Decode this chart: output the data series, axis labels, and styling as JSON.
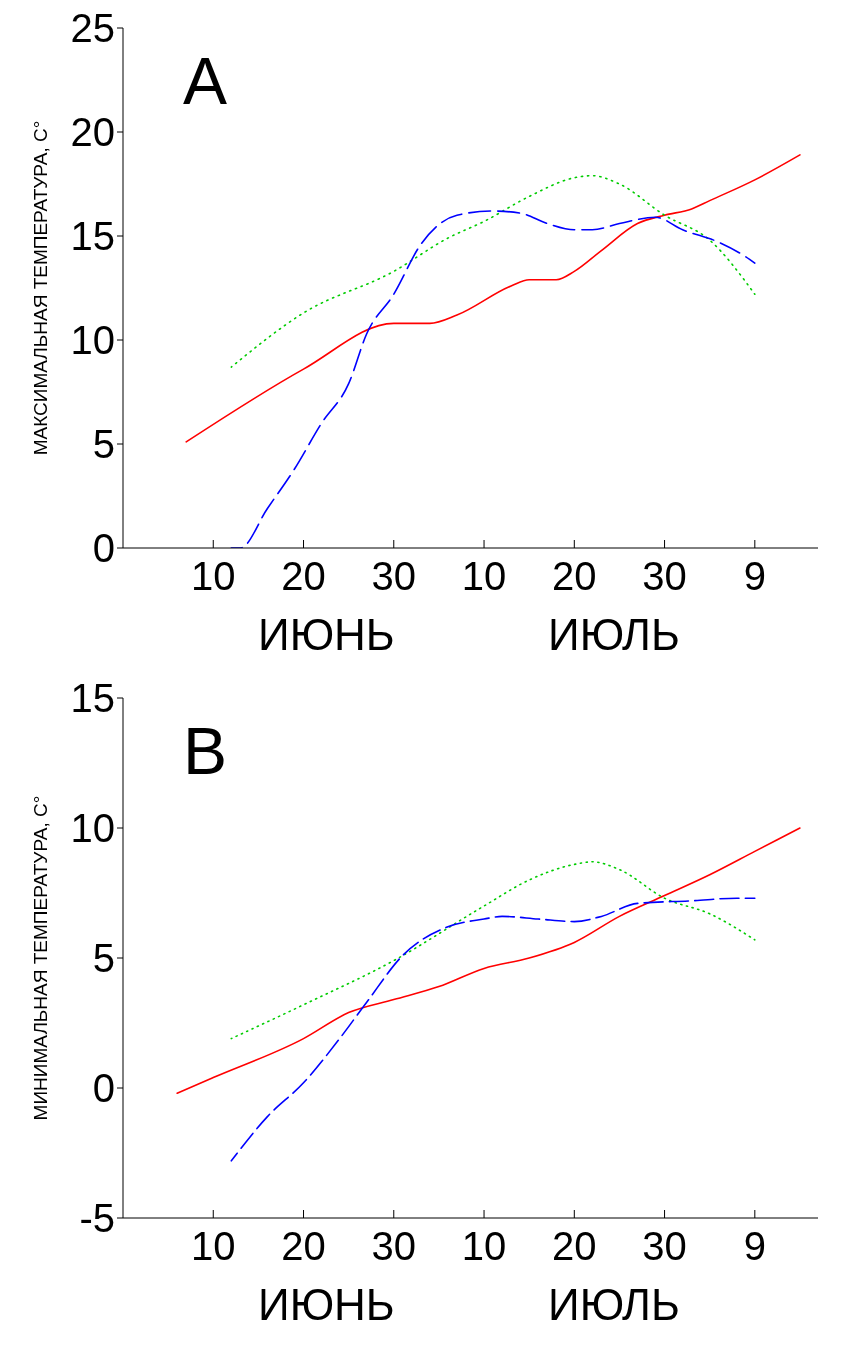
{
  "chart_data": [
    {
      "type": "line",
      "title": "A",
      "ylabel": "МАКСИМАЛЬНАЯ ТЕМПЕРАТУРА, C°",
      "annotations": [
        "ИЮНЬ",
        "ИЮЛЬ"
      ],
      "xlim": [
        "--05-31",
        "--08-16"
      ],
      "xticks": [
        {
          "value": "--06-10",
          "label": "10"
        },
        {
          "value": "--06-20",
          "label": "20"
        },
        {
          "value": "--06-30",
          "label": "30"
        },
        {
          "value": "--07-10",
          "label": "10"
        },
        {
          "value": "--07-20",
          "label": "20"
        },
        {
          "value": "--07-30",
          "label": "30"
        },
        {
          "value": "--08-09",
          "label": "9"
        }
      ],
      "ylim": [
        0,
        25
      ],
      "yticks": [
        0,
        5,
        10,
        15,
        20,
        25
      ],
      "grid": false,
      "marker": "none",
      "series": [
        {
          "color": "#ff0000",
          "line_style": "solid",
          "x": [
            "--06-07",
            "--06-20",
            "--06-30",
            "--07-04",
            "--07-07",
            "--07-13",
            "--07-15",
            "--07-18",
            "--07-20",
            "--07-23",
            "--07-27",
            "--07-30",
            "--08-02",
            "--08-04",
            "--08-09",
            "--08-14"
          ],
          "values": [
            5.1,
            8.6,
            10.8,
            10.8,
            11.2,
            12.6,
            12.9,
            12.9,
            13.3,
            14.3,
            15.6,
            16.0,
            16.3,
            16.7,
            17.7,
            18.9
          ]
        },
        {
          "color": "#00cc00",
          "line_style": "dotted",
          "x": [
            "--06-12",
            "--06-20",
            "--06-30",
            "--07-06",
            "--07-10",
            "--07-15",
            "--07-20",
            "--07-22",
            "--07-25",
            "--07-30",
            "--08-04",
            "--08-09"
          ],
          "values": [
            8.7,
            11.3,
            13.3,
            14.9,
            15.7,
            16.9,
            17.8,
            17.9,
            17.5,
            16.0,
            14.8,
            12.2
          ]
        },
        {
          "color": "#0000ff",
          "line_style": "dashed",
          "x": [
            "--06-12",
            "--06-13",
            "--06-16",
            "--06-19",
            "--06-22",
            "--06-25",
            "--06-27",
            "--06-30",
            "--07-03",
            "--07-07",
            "--07-11",
            "--07-14",
            "--07-17",
            "--07-20",
            "--07-22",
            "--07-25",
            "--07-29",
            "--08-01",
            "--08-05",
            "--08-08",
            "--08-09"
          ],
          "values": [
            0,
            0,
            1.9,
            3.8,
            6.0,
            7.9,
            10.3,
            12.2,
            14.6,
            16.0,
            16.2,
            16.1,
            15.6,
            15.3,
            15.3,
            15.6,
            15.9,
            15.3,
            14.7,
            14.0,
            13.7
          ]
        }
      ]
    },
    {
      "type": "line",
      "title": "B",
      "ylabel": "МИНИМАЛЬНАЯ ТЕМПЕРАТУРА, C°",
      "annotations": [
        "ИЮНЬ",
        "ИЮЛЬ"
      ],
      "xlim": [
        "--05-31",
        "--08-16"
      ],
      "xticks": [
        {
          "value": "--06-10",
          "label": "10"
        },
        {
          "value": "--06-20",
          "label": "20"
        },
        {
          "value": "--06-30",
          "label": "30"
        },
        {
          "value": "--07-10",
          "label": "10"
        },
        {
          "value": "--07-20",
          "label": "20"
        },
        {
          "value": "--07-30",
          "label": "30"
        },
        {
          "value": "--08-09",
          "label": "9"
        }
      ],
      "ylim": [
        -5,
        15
      ],
      "yticks": [
        -5,
        0,
        5,
        10,
        15
      ],
      "grid": false,
      "marker": "none",
      "series": [
        {
          "color": "#ff0000",
          "line_style": "solid",
          "x": [
            "--06-06",
            "--06-10",
            "--06-20",
            "--06-25",
            "--06-30",
            "--07-05",
            "--07-10",
            "--07-15",
            "--07-20",
            "--07-25",
            "--07-30",
            "--08-04",
            "--08-09",
            "--08-14"
          ],
          "values": [
            -0.2,
            0.4,
            1.9,
            2.9,
            3.4,
            3.9,
            4.6,
            5.0,
            5.6,
            6.6,
            7.4,
            8.2,
            9.1,
            10.0
          ]
        },
        {
          "color": "#00cc00",
          "line_style": "dotted",
          "x": [
            "--06-12",
            "--06-20",
            "--06-30",
            "--07-10",
            "--07-15",
            "--07-20",
            "--07-22",
            "--07-25",
            "--07-30",
            "--08-04",
            "--08-09"
          ],
          "values": [
            1.9,
            3.2,
            4.9,
            7.0,
            8.0,
            8.6,
            8.7,
            8.4,
            7.3,
            6.7,
            5.7
          ]
        },
        {
          "color": "#0000ff",
          "line_style": "dashed",
          "x": [
            "--06-12",
            "--06-16",
            "--06-20",
            "--06-24",
            "--06-27",
            "--07-01",
            "--07-06",
            "--07-10",
            "--07-12",
            "--07-16",
            "--07-20",
            "--07-23",
            "--07-27",
            "--08-02",
            "--08-07",
            "--08-09"
          ],
          "values": [
            -2.8,
            -1.1,
            0.2,
            1.9,
            3.3,
            5.1,
            6.2,
            6.5,
            6.6,
            6.5,
            6.4,
            6.6,
            7.1,
            7.2,
            7.3,
            7.3
          ]
        }
      ]
    }
  ]
}
